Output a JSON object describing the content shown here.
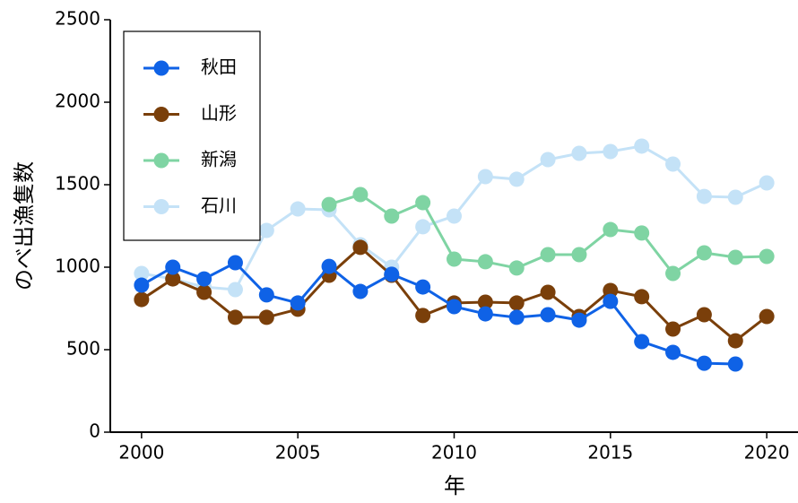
{
  "chart_data": {
    "type": "line",
    "xlabel": "年",
    "ylabel": "のべ出漁隻数",
    "x": [
      2000,
      2001,
      2002,
      2003,
      2004,
      2005,
      2006,
      2007,
      2008,
      2009,
      2010,
      2011,
      2012,
      2013,
      2014,
      2015,
      2016,
      2017,
      2018,
      2019,
      2020
    ],
    "series": [
      {
        "name": "秋田",
        "color": "#0f62e6",
        "values": [
          891,
          1000,
          929,
          1027,
          832,
          783,
          1005,
          853,
          957,
          880,
          761,
          717,
          696,
          712,
          679,
          793,
          549,
          484,
          418,
          413,
          null
        ]
      },
      {
        "name": "山形",
        "color": "#7a3f0a",
        "values": [
          804,
          929,
          848,
          696,
          696,
          745,
          951,
          1120,
          951,
          707,
          783,
          788,
          783,
          848,
          701,
          859,
          821,
          625,
          712,
          554,
          701
        ]
      },
      {
        "name": "新潟",
        "color": "#7fd4a3",
        "values": [
          null,
          null,
          null,
          null,
          null,
          null,
          1380,
          1440,
          1310,
          1391,
          1049,
          1033,
          995,
          1076,
          1076,
          1228,
          1207,
          962,
          1087,
          1060,
          1065
        ]
      },
      {
        "name": "石川",
        "color": "#c4e2f7",
        "values": [
          962,
          929,
          880,
          864,
          1223,
          1353,
          1348,
          1136,
          1000,
          1245,
          1310,
          1549,
          1533,
          1652,
          1690,
          1701,
          1734,
          1625,
          1429,
          1424,
          1511
        ]
      }
    ],
    "xlim": [
      1999,
      2021
    ],
    "xticks": [
      2000,
      2005,
      2010,
      2015,
      2020
    ],
    "ylim": [
      0,
      2500
    ],
    "yticks": [
      0,
      500,
      1000,
      1500,
      2000,
      2500
    ],
    "legend": "upper left",
    "grid": false
  }
}
